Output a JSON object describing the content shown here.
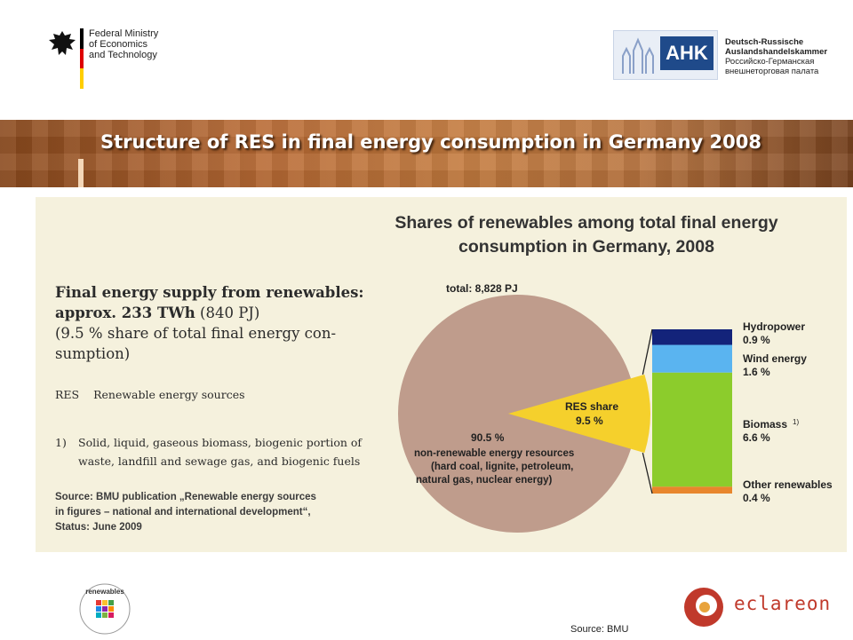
{
  "header": {
    "ministry_lines": [
      "Federal Ministry",
      "of Economics",
      "and Technology"
    ],
    "ahk_badge": "AHK",
    "ahk_lines": [
      "Deutsch-Russische",
      "Auslandshandelskammer",
      "Российско-Германская",
      "внешнеторговая палата"
    ]
  },
  "banner": {
    "title": "Structure of RES in final energy consumption in Germany 2008"
  },
  "figure": {
    "title_line1": "Shares of renewables among total final energy",
    "title_line2": "consumption in Germany, 2008",
    "supply_line1": "Final energy supply from renewables:",
    "supply_line2_bold": "approx. 233 TWh",
    "supply_line2_rest": " (840 PJ)",
    "supply_line3": "(9.5 % share of total final energy con-",
    "supply_line4": "sumption)",
    "res_abbr": "RES",
    "res_text": "Renewable energy sources",
    "footnote_num": "1)",
    "footnote_text": "Solid, liquid, gaseous biomass, biogenic portion of waste, landfill and sewage gas, and biogenic fuels",
    "source_line1": "Source: BMU publication „Renewable energy sources",
    "source_line2": "in figures – national and international development“,",
    "source_line3": "Status: June 2009"
  },
  "chart_data": [
    {
      "type": "pie",
      "total_label": "total: 8,828 PJ",
      "slices": [
        {
          "label": "non-renewable energy resources",
          "value": 90.5,
          "value_label": "90.5  %",
          "detail_lines": [
            "non-renewable energy resources",
            "(hard coal, lignite, petroleum,",
            "natural gas, nuclear energy)"
          ],
          "color": "#bf9c8c"
        },
        {
          "label": "RES share",
          "value": 9.5,
          "value_label": "9.5  %",
          "color": "#f5d02c"
        }
      ]
    },
    {
      "type": "bar",
      "stacked": true,
      "total": 9.5,
      "series": [
        {
          "name": "Other renewables",
          "value": 0.4,
          "value_label": "0.4 %",
          "color": "#e8862c"
        },
        {
          "name": "Biomass",
          "value": 6.6,
          "value_label": "6.6 %",
          "color": "#8ccc2c",
          "footnote": "1)"
        },
        {
          "name": "Wind energy",
          "value": 1.6,
          "value_label": "1.6 %",
          "color": "#5ab4f0"
        },
        {
          "name": "Hydropower",
          "value": 0.9,
          "value_label": "0.9 %",
          "color": "#13237a"
        }
      ]
    }
  ],
  "footer": {
    "eclareon": "eclareon",
    "renewables_logo_text": "renewables",
    "source": "Source: BMU"
  }
}
